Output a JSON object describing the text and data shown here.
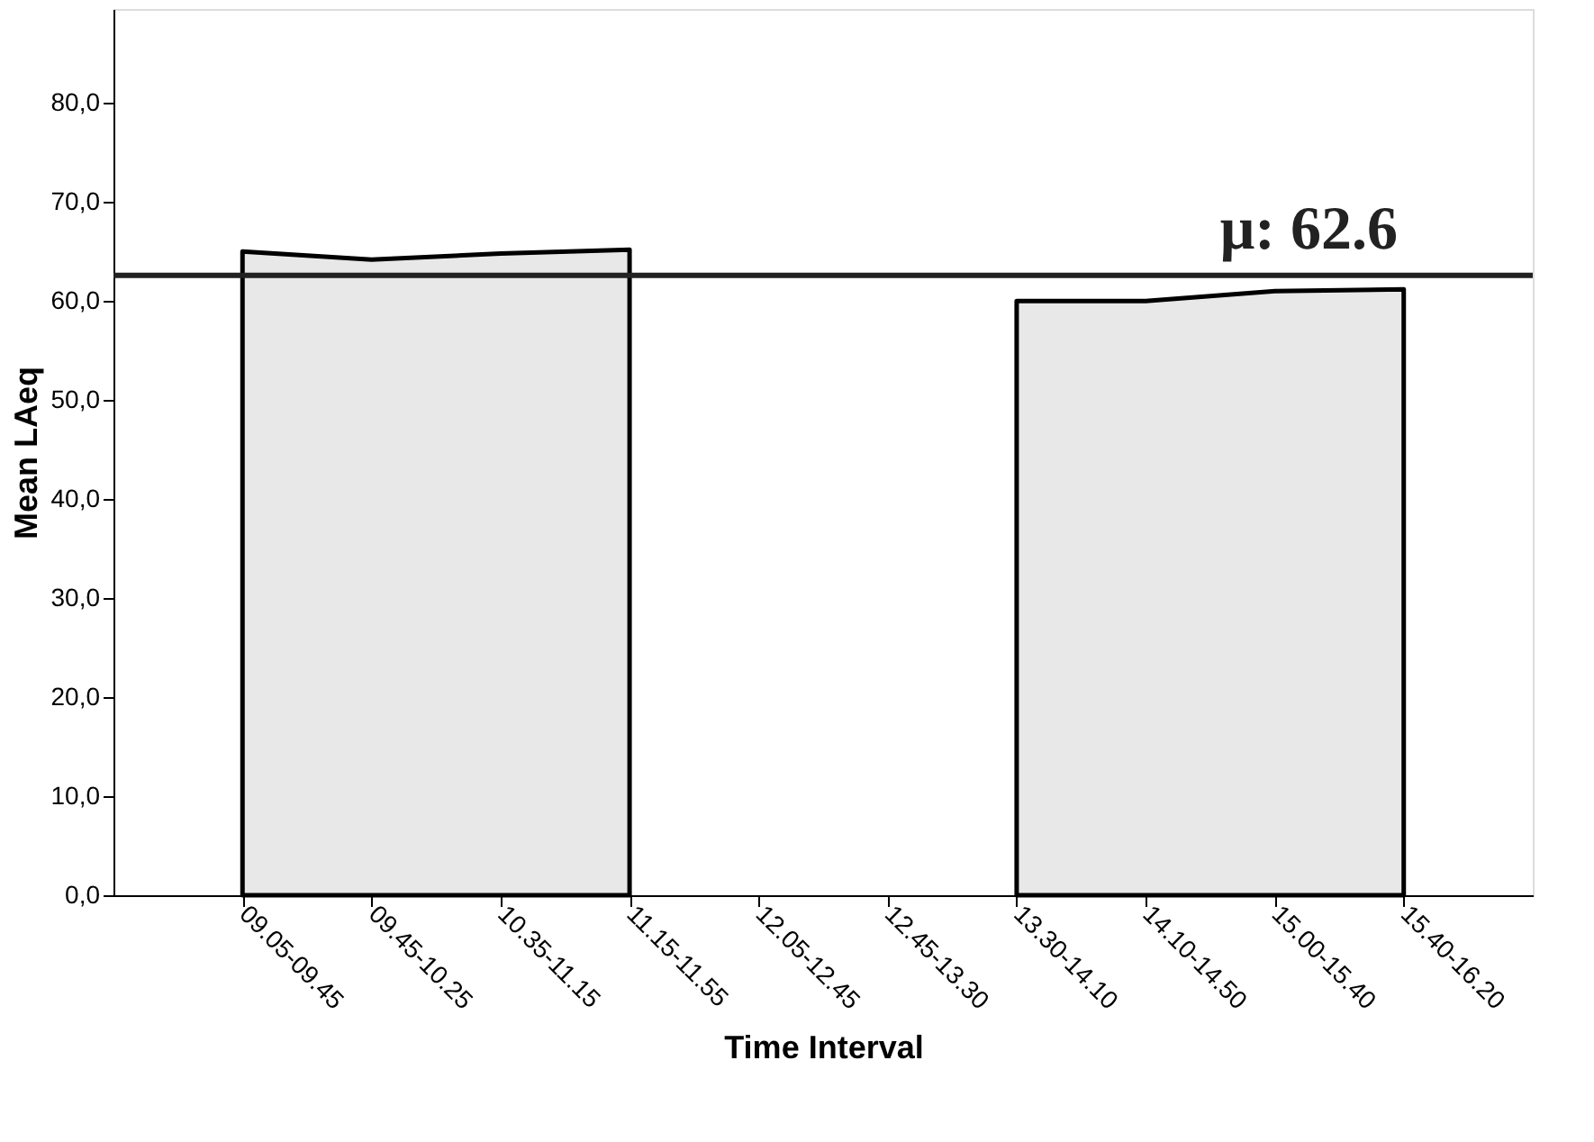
{
  "chart_data": {
    "type": "area",
    "xlabel": "Time Interval",
    "ylabel": "Mean LAeq",
    "categories": [
      "09.05-09.45",
      "09.45-10.25",
      "10.35-11.15",
      "11.15-11.55",
      "12.05-12.45",
      "12.45-13.30",
      "13.30-14.10",
      "14.10-14.50",
      "15.00-15.40",
      "15.40-16.20"
    ],
    "series": [
      {
        "color": "#e8e8e8",
        "values": [
          65.0,
          64.2,
          64.8,
          65.2,
          null,
          null,
          60.0,
          60.0,
          61.0,
          61.2
        ]
      }
    ],
    "ylim": [
      0,
      89.5
    ],
    "yticks": [
      {
        "value": 0,
        "label": "0,0"
      },
      {
        "value": 10,
        "label": "10,0"
      },
      {
        "value": 20,
        "label": "20,0"
      },
      {
        "value": 30,
        "label": "30,0"
      },
      {
        "value": 40,
        "label": "40,0"
      },
      {
        "value": 50,
        "label": "50,0"
      },
      {
        "value": 60,
        "label": "60,0"
      },
      {
        "value": 70,
        "label": "70,0"
      },
      {
        "value": 80,
        "label": "80,0"
      }
    ],
    "ref_lines": [
      {
        "axis": "y",
        "value": 62.6,
        "label": "μ: 62.6",
        "color": "#222222"
      }
    ],
    "grid": false
  }
}
